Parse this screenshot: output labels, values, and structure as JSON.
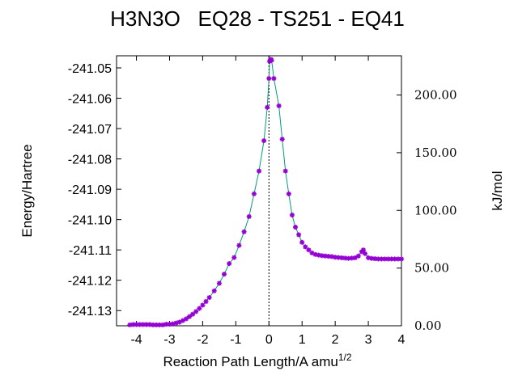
{
  "chart_data": {
    "type": "line",
    "title": "H3N3O   EQ28 - TS251 - EQ41",
    "xlabel": "Reaction Path Length/A amu",
    "xlabel_sup": "1/2",
    "ylabel": "Energy/Hartree",
    "y2label": "kJ/mol",
    "xlim": [
      -4.6,
      4.0
    ],
    "ylim": [
      -241.135,
      -241.046
    ],
    "y2lim": [
      0,
      234
    ],
    "xticks": [
      -4,
      -3,
      -2,
      -1,
      0,
      1,
      2,
      3,
      4
    ],
    "xtick_labels": [
      "-4",
      "-3",
      "-2",
      "-1",
      "0",
      "1",
      "2",
      "3",
      "4"
    ],
    "yticks": [
      -241.05,
      -241.06,
      -241.07,
      -241.08,
      -241.09,
      -241.1,
      -241.11,
      -241.12,
      -241.13
    ],
    "ytick_labels": [
      "-241.05",
      "-241.06",
      "-241.07",
      "-241.08",
      "-241.09",
      "-241.10",
      "-241.11",
      "-241.12",
      "-241.13"
    ],
    "y2ticks": [
      0,
      50,
      100,
      150,
      200
    ],
    "y2tick_labels": [
      "0.00",
      "50.00",
      "100.00",
      "150.00",
      "200.00"
    ],
    "ts_x": 0,
    "line_color": "#009e73",
    "marker_color": "#9400d3",
    "grid": false,
    "series": [
      {
        "x": [
          -4.2,
          -4.1,
          -4.0,
          -3.9,
          -3.8,
          -3.7,
          -3.6,
          -3.5,
          -3.4,
          -3.3,
          -3.2,
          -3.1,
          -3.0,
          -2.9,
          -2.8,
          -2.7,
          -2.6,
          -2.5,
          -2.4,
          -2.3,
          -2.2,
          -2.1,
          -2.0,
          -1.9,
          -1.8,
          -1.65,
          -1.5,
          -1.35,
          -1.2,
          -1.05,
          -0.9,
          -0.75,
          -0.6,
          -0.45,
          -0.3,
          -0.15,
          -0.05,
          0.0,
          0.02,
          0.04,
          0.06,
          0.08,
          0.15,
          0.3,
          0.4,
          0.5,
          0.6,
          0.7,
          0.8,
          0.9,
          1.0,
          1.1,
          1.2,
          1.3,
          1.4,
          1.5,
          1.6,
          1.7,
          1.8,
          1.9,
          2.0,
          2.1,
          2.2,
          2.3,
          2.4,
          2.5,
          2.6,
          2.7,
          2.8,
          2.85,
          2.9,
          3.0,
          3.1,
          3.2,
          3.3,
          3.4,
          3.5,
          3.6,
          3.7,
          3.8,
          3.9,
          4.0
        ],
        "y": [
          -241.1347,
          -241.1346,
          -241.1346,
          -241.1346,
          -241.1346,
          -241.1346,
          -241.1346,
          -241.1347,
          -241.1347,
          -241.1347,
          -241.1347,
          -241.1345,
          -241.1345,
          -241.1344,
          -241.1341,
          -241.1338,
          -241.1333,
          -241.1327,
          -241.132,
          -241.1312,
          -241.1303,
          -241.1293,
          -241.1282,
          -241.127,
          -241.1257,
          -241.1235,
          -241.121,
          -241.118,
          -241.1145,
          -241.1125,
          -241.1085,
          -241.104,
          -241.099,
          -241.0915,
          -241.084,
          -241.074,
          -241.063,
          -241.0535,
          -241.0478,
          -241.0474,
          -241.0472,
          -241.0475,
          -241.0535,
          -241.0625,
          -241.0735,
          -241.084,
          -241.0915,
          -241.0985,
          -241.1025,
          -241.105,
          -241.1075,
          -241.109,
          -241.11,
          -241.111,
          -241.1115,
          -241.1117,
          -241.1119,
          -241.112,
          -241.1121,
          -241.1122,
          -241.1124,
          -241.1125,
          -241.1126,
          -241.1127,
          -241.1128,
          -241.1127,
          -241.1126,
          -241.112,
          -241.1106,
          -241.11,
          -241.1112,
          -241.1126,
          -241.1128,
          -241.1129,
          -241.113,
          -241.113,
          -241.113,
          -241.113,
          -241.113,
          -241.113,
          -241.113,
          -241.113
        ]
      }
    ]
  }
}
